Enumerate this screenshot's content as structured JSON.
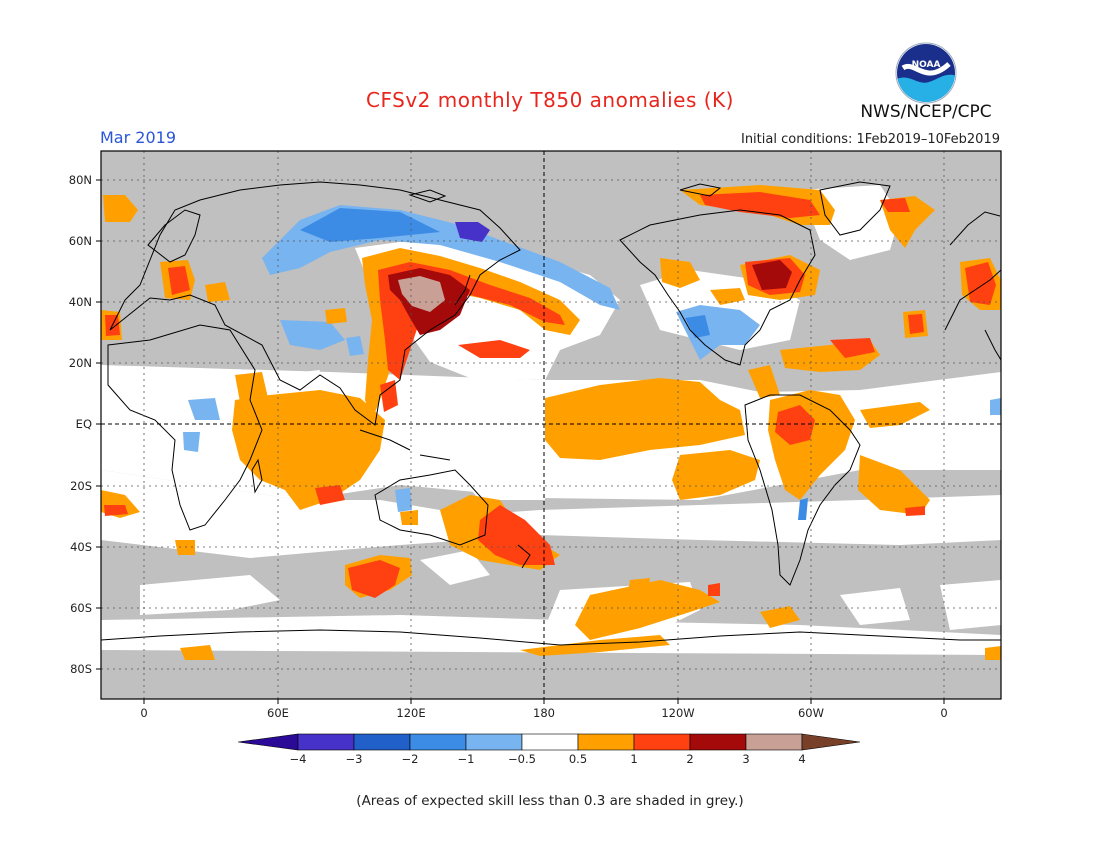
{
  "header": {
    "title": "CFSv2 monthly T850 anomalies (K)",
    "month": "Mar 2019",
    "initial_conditions": "Initial conditions: 1Feb2019–10Feb2019",
    "agency": "NWS/NCEP/CPC",
    "logo_text": "NOAA"
  },
  "map": {
    "lat_labels": [
      "80N",
      "60N",
      "40N",
      "20N",
      "EQ",
      "20S",
      "40S",
      "60S",
      "80S"
    ],
    "lon_labels": [
      "0",
      "60E",
      "120E",
      "180",
      "120W",
      "60W",
      "0"
    ],
    "colors": {
      "grey": "#c0c0c0",
      "white": "#ffffff",
      "pos1": "#ffa000",
      "pos2": "#ff4010",
      "pos3": "#a50a0a",
      "pos4": "#c8a096",
      "pos5": "#784028",
      "neg1": "#78b4f0",
      "neg2": "#3c8ce6",
      "neg3": "#2060c8",
      "neg4": "#4632c8",
      "neg5": "#2a0a96"
    }
  },
  "colorbar": {
    "labels": [
      "−4",
      "−3",
      "−2",
      "−1",
      "−0.5",
      "0.5",
      "1",
      "2",
      "3",
      "4"
    ]
  },
  "footnote": "(Areas of expected skill less than 0.3 are shaded in grey.)"
}
